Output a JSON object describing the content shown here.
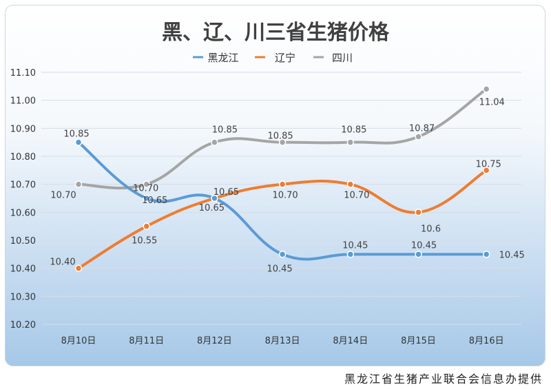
{
  "chart_data": {
    "type": "line",
    "title": "黑、辽、川三省生猪价格",
    "categories": [
      "8月10日",
      "8月11日",
      "8月12日",
      "8月13日",
      "8月14日",
      "8月15日",
      "8月16日"
    ],
    "y_ticks": [
      "10.20",
      "10.30",
      "10.40",
      "10.50",
      "10.60",
      "10.70",
      "10.80",
      "10.90",
      "11.00",
      "11.10"
    ],
    "ylim": [
      10.2,
      11.1
    ],
    "grid": true,
    "legend_position": "top",
    "series": [
      {
        "name": "黑龙江",
        "color": "#5b9bd5",
        "values": [
          10.85,
          10.65,
          10.65,
          10.45,
          10.45,
          10.45,
          10.45
        ],
        "labels": [
          "10.85",
          "10.65",
          "10.65",
          "10.45",
          "10.45",
          "10.45",
          "10.45"
        ]
      },
      {
        "name": "辽宁",
        "color": "#ed7d31",
        "values": [
          10.4,
          10.55,
          10.65,
          10.7,
          10.7,
          10.6,
          10.75
        ],
        "labels": [
          "10.40",
          "10.55",
          "10.65",
          "10.70",
          "10.70",
          "10.6",
          "10.75"
        ]
      },
      {
        "name": "四川",
        "color": "#a5a5a5",
        "values": [
          10.7,
          10.7,
          10.85,
          10.85,
          10.85,
          10.87,
          11.04
        ],
        "labels": [
          "10.70",
          "10.70",
          "10.85",
          "10.85",
          "10.85",
          "10.87",
          "11.04"
        ]
      }
    ]
  },
  "source_note": "黑龙江省生猪产业联合会信息办提供"
}
